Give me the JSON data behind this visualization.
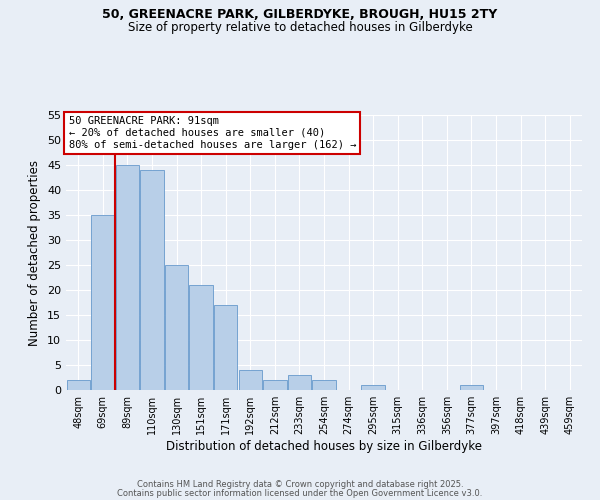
{
  "title1": "50, GREENACRE PARK, GILBERDYKE, BROUGH, HU15 2TY",
  "title2": "Size of property relative to detached houses in Gilberdyke",
  "xlabel": "Distribution of detached houses by size in Gilberdyke",
  "ylabel": "Number of detached properties",
  "categories": [
    "48sqm",
    "69sqm",
    "89sqm",
    "110sqm",
    "130sqm",
    "151sqm",
    "171sqm",
    "192sqm",
    "212sqm",
    "233sqm",
    "254sqm",
    "274sqm",
    "295sqm",
    "315sqm",
    "336sqm",
    "356sqm",
    "377sqm",
    "397sqm",
    "418sqm",
    "439sqm",
    "459sqm"
  ],
  "values": [
    2,
    35,
    45,
    44,
    25,
    21,
    17,
    4,
    2,
    3,
    2,
    0,
    1,
    0,
    0,
    0,
    1,
    0,
    0,
    0,
    0
  ],
  "bar_color": "#b8cfe8",
  "bar_edge_color": "#6699cc",
  "red_line_x": 1.5,
  "annotation_title": "50 GREENACRE PARK: 91sqm",
  "annotation_line1": "← 20% of detached houses are smaller (40)",
  "annotation_line2": "80% of semi-detached houses are larger (162) →",
  "red_line_color": "#cc0000",
  "ylim": [
    0,
    55
  ],
  "yticks": [
    0,
    5,
    10,
    15,
    20,
    25,
    30,
    35,
    40,
    45,
    50,
    55
  ],
  "bg_color": "#e8eef6",
  "fig_bg_color": "#e8eef6",
  "footer1": "Contains HM Land Registry data © Crown copyright and database right 2025.",
  "footer2": "Contains public sector information licensed under the Open Government Licence v3.0."
}
